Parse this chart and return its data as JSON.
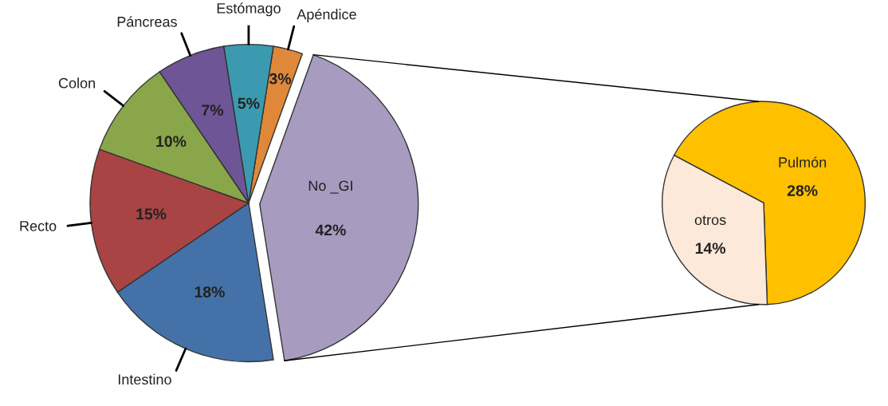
{
  "chart_data": [
    {
      "type": "pie",
      "categories": [
        "Apéndice",
        "No _GI",
        "Intestino",
        "Recto",
        "Colon",
        "Páncreas",
        "Estómago"
      ],
      "values": [
        3,
        42,
        18,
        15,
        10,
        7,
        5
      ],
      "value_labels": [
        "3%",
        "42%",
        "18%",
        "15%",
        "10%",
        "7%",
        "5%"
      ],
      "colors": [
        "#e0883a",
        "#a89bc0",
        "#4472a8",
        "#a84444",
        "#8aa64a",
        "#6e5596",
        "#3c9ab0"
      ]
    },
    {
      "type": "pie",
      "categories": [
        "Pulmón",
        "otros"
      ],
      "values": [
        28,
        14
      ],
      "value_labels": [
        "28%",
        "14%"
      ],
      "colors": [
        "#ffc000",
        "#fde9d9"
      ]
    }
  ]
}
